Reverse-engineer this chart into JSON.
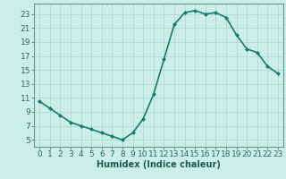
{
  "x": [
    0,
    1,
    2,
    3,
    4,
    5,
    6,
    7,
    8,
    9,
    10,
    11,
    12,
    13,
    14,
    15,
    16,
    17,
    18,
    19,
    20,
    21,
    22,
    23
  ],
  "y": [
    10.5,
    9.5,
    8.5,
    7.5,
    7.0,
    6.5,
    6.0,
    5.5,
    5.0,
    6.0,
    8.0,
    11.5,
    16.5,
    21.5,
    23.2,
    23.5,
    23.0,
    23.2,
    22.5,
    20.0,
    18.0,
    17.5,
    15.5,
    14.5
  ],
  "line_color": "#1a7a6e",
  "marker": "D",
  "markersize": 2,
  "linewidth": 1.2,
  "bg_color": "#cceee8",
  "xlabel": "Humidex (Indice chaleur)",
  "ylim": [
    4,
    24.5
  ],
  "xlim": [
    -0.5,
    23.5
  ],
  "yticks": [
    5,
    7,
    9,
    11,
    13,
    15,
    17,
    19,
    21,
    23
  ],
  "xticks": [
    0,
    1,
    2,
    3,
    4,
    5,
    6,
    7,
    8,
    9,
    10,
    11,
    12,
    13,
    14,
    15,
    16,
    17,
    18,
    19,
    20,
    21,
    22,
    23
  ],
  "xlabel_fontsize": 7,
  "tick_fontsize": 6.5,
  "grid_color": "#aad4ce",
  "spine_color": "#5a9a94",
  "tick_color": "#2a6a64",
  "xlabel_color": "#1a5a54"
}
